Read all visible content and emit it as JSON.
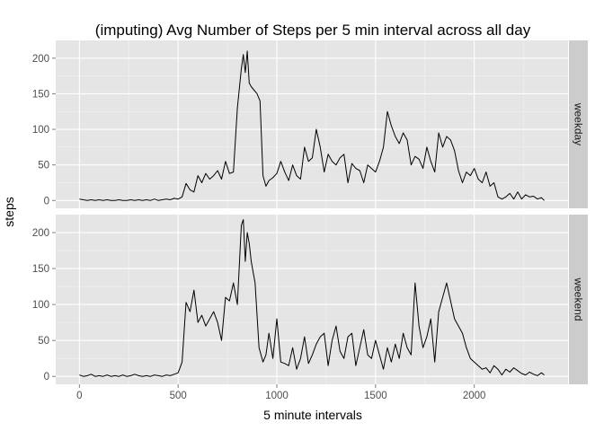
{
  "chart_data": {
    "type": "line",
    "title": "(imputing) Avg Number of Steps per 5 min interval across all day",
    "xlabel": "5 minute intervals",
    "ylabel": "steps",
    "xlim": [
      -120,
      2475
    ],
    "ylim": [
      -11,
      225
    ],
    "x_ticks": [
      0,
      500,
      1000,
      1500,
      2000
    ],
    "y_ticks": [
      0,
      50,
      100,
      150,
      200
    ],
    "grid": true,
    "panel_background": "#e5e5e5",
    "strip_background": "#cccccc",
    "grid_color": "#ffffff",
    "line_color": "#000000",
    "panels": [
      {
        "label": "weekday",
        "x": [
          0,
          20,
          40,
          60,
          80,
          100,
          120,
          140,
          160,
          180,
          200,
          220,
          240,
          260,
          280,
          300,
          320,
          340,
          360,
          380,
          400,
          420,
          440,
          460,
          480,
          500,
          520,
          540,
          560,
          580,
          600,
          620,
          640,
          660,
          680,
          700,
          720,
          740,
          760,
          780,
          800,
          820,
          830,
          840,
          850,
          860,
          870,
          900,
          915,
          930,
          945,
          960,
          980,
          1000,
          1020,
          1040,
          1060,
          1080,
          1100,
          1120,
          1140,
          1160,
          1180,
          1200,
          1220,
          1240,
          1260,
          1280,
          1300,
          1320,
          1340,
          1360,
          1380,
          1400,
          1420,
          1440,
          1460,
          1480,
          1500,
          1520,
          1540,
          1560,
          1580,
          1600,
          1620,
          1640,
          1660,
          1680,
          1700,
          1720,
          1740,
          1760,
          1780,
          1800,
          1820,
          1840,
          1860,
          1880,
          1900,
          1920,
          1940,
          1960,
          1980,
          2000,
          2020,
          2040,
          2060,
          2080,
          2100,
          2120,
          2140,
          2160,
          2180,
          2200,
          2220,
          2240,
          2260,
          2280,
          2300,
          2320,
          2340,
          2355
        ],
        "y": [
          2,
          1,
          0,
          1,
          0,
          1,
          0,
          1,
          0,
          0,
          1,
          0,
          0,
          1,
          0,
          1,
          0,
          1,
          0,
          2,
          0,
          1,
          2,
          1,
          3,
          2,
          5,
          24,
          15,
          12,
          35,
          25,
          38,
          30,
          35,
          42,
          30,
          55,
          38,
          40,
          130,
          185,
          205,
          180,
          210,
          165,
          160,
          150,
          140,
          35,
          20,
          28,
          32,
          38,
          55,
          40,
          28,
          50,
          35,
          30,
          75,
          55,
          60,
          100,
          75,
          40,
          65,
          55,
          50,
          60,
          65,
          25,
          52,
          45,
          42,
          25,
          50,
          45,
          40,
          55,
          75,
          125,
          105,
          90,
          80,
          95,
          85,
          50,
          62,
          58,
          45,
          75,
          55,
          40,
          95,
          75,
          90,
          85,
          70,
          42,
          25,
          40,
          35,
          45,
          30,
          25,
          40,
          20,
          25,
          5,
          2,
          5,
          10,
          2,
          12,
          2,
          8,
          5,
          6,
          2,
          4,
          0
        ]
      },
      {
        "label": "weekend",
        "x": [
          0,
          20,
          40,
          60,
          80,
          100,
          120,
          140,
          160,
          180,
          200,
          220,
          240,
          260,
          280,
          300,
          320,
          340,
          360,
          380,
          400,
          420,
          440,
          460,
          480,
          500,
          520,
          540,
          560,
          580,
          600,
          620,
          640,
          660,
          680,
          700,
          720,
          740,
          760,
          780,
          800,
          820,
          830,
          840,
          850,
          860,
          870,
          890,
          910,
          930,
          945,
          960,
          980,
          1000,
          1020,
          1040,
          1060,
          1080,
          1100,
          1120,
          1140,
          1160,
          1180,
          1200,
          1220,
          1240,
          1260,
          1280,
          1300,
          1320,
          1340,
          1360,
          1380,
          1400,
          1420,
          1440,
          1460,
          1480,
          1500,
          1520,
          1540,
          1560,
          1580,
          1600,
          1620,
          1640,
          1660,
          1680,
          1700,
          1720,
          1740,
          1760,
          1780,
          1800,
          1820,
          1840,
          1860,
          1880,
          1900,
          1920,
          1940,
          1960,
          1980,
          2000,
          2020,
          2040,
          2060,
          2080,
          2100,
          2120,
          2140,
          2160,
          2180,
          2200,
          2220,
          2240,
          2260,
          2280,
          2300,
          2320,
          2340,
          2355
        ],
        "y": [
          2,
          0,
          1,
          3,
          0,
          1,
          0,
          2,
          0,
          1,
          0,
          2,
          0,
          1,
          3,
          1,
          0,
          1,
          0,
          2,
          1,
          0,
          2,
          1,
          3,
          5,
          20,
          103,
          90,
          120,
          75,
          85,
          70,
          80,
          90,
          75,
          50,
          110,
          105,
          130,
          100,
          210,
          218,
          160,
          200,
          185,
          160,
          130,
          40,
          20,
          30,
          60,
          25,
          80,
          20,
          18,
          15,
          40,
          10,
          25,
          55,
          18,
          30,
          45,
          55,
          60,
          15,
          50,
          70,
          35,
          25,
          55,
          60,
          15,
          40,
          65,
          30,
          25,
          50,
          30,
          10,
          40,
          20,
          45,
          25,
          60,
          40,
          30,
          130,
          70,
          40,
          55,
          80,
          20,
          90,
          110,
          130,
          105,
          80,
          70,
          60,
          40,
          25,
          20,
          15,
          10,
          12,
          5,
          15,
          10,
          2,
          10,
          6,
          12,
          8,
          4,
          2,
          6,
          3,
          1,
          5,
          2
        ]
      }
    ]
  }
}
